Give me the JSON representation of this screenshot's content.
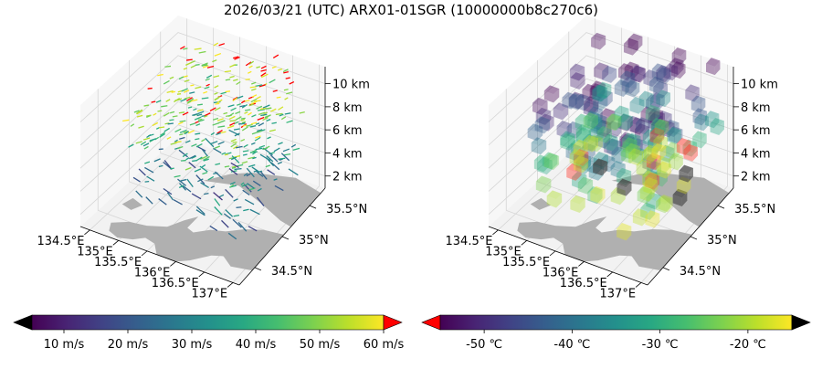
{
  "figure": {
    "title": "2026/03/21 (UTC) ARX01-01SGR (10000000b8c270c6)"
  },
  "chart_data": [
    {
      "type": "3d-quiver",
      "name": "wind",
      "x_ticks": [
        "134.5°E",
        "135°E",
        "135.5°E",
        "136°E",
        "136.5°E",
        "137°E"
      ],
      "y_ticks": [
        "34.5°N",
        "35°N",
        "35.5°N"
      ],
      "z_ticks": [
        "2 km",
        "4 km",
        "6 km",
        "8 km",
        "10 km"
      ],
      "colorbar": {
        "ticks": [
          "10 m/s",
          "20 m/s",
          "30 m/s",
          "40 m/s",
          "50 m/s",
          "60 m/s"
        ],
        "range": [
          5,
          60
        ],
        "extend": "both",
        "cmap": "viridis",
        "under_color": "#000000",
        "over_color": "#ff0000"
      }
    },
    {
      "type": "3d-voxels",
      "name": "temperature",
      "x_ticks": [
        "134.5°E",
        "135°E",
        "135.5°E",
        "136°E",
        "136.5°E",
        "137°E"
      ],
      "y_ticks": [
        "34.5°N",
        "35°N",
        "35.5°N"
      ],
      "z_ticks": [
        "2 km",
        "4 km",
        "6 km",
        "8 km",
        "10 km"
      ],
      "colorbar": {
        "ticks": [
          "-50 ℃",
          "-40 ℃",
          "-30 ℃",
          "-20 ℃"
        ],
        "range": [
          -55,
          -15
        ],
        "extend": "both",
        "cmap": "viridis",
        "under_color": "#ff0000",
        "over_color": "#000000"
      }
    }
  ]
}
